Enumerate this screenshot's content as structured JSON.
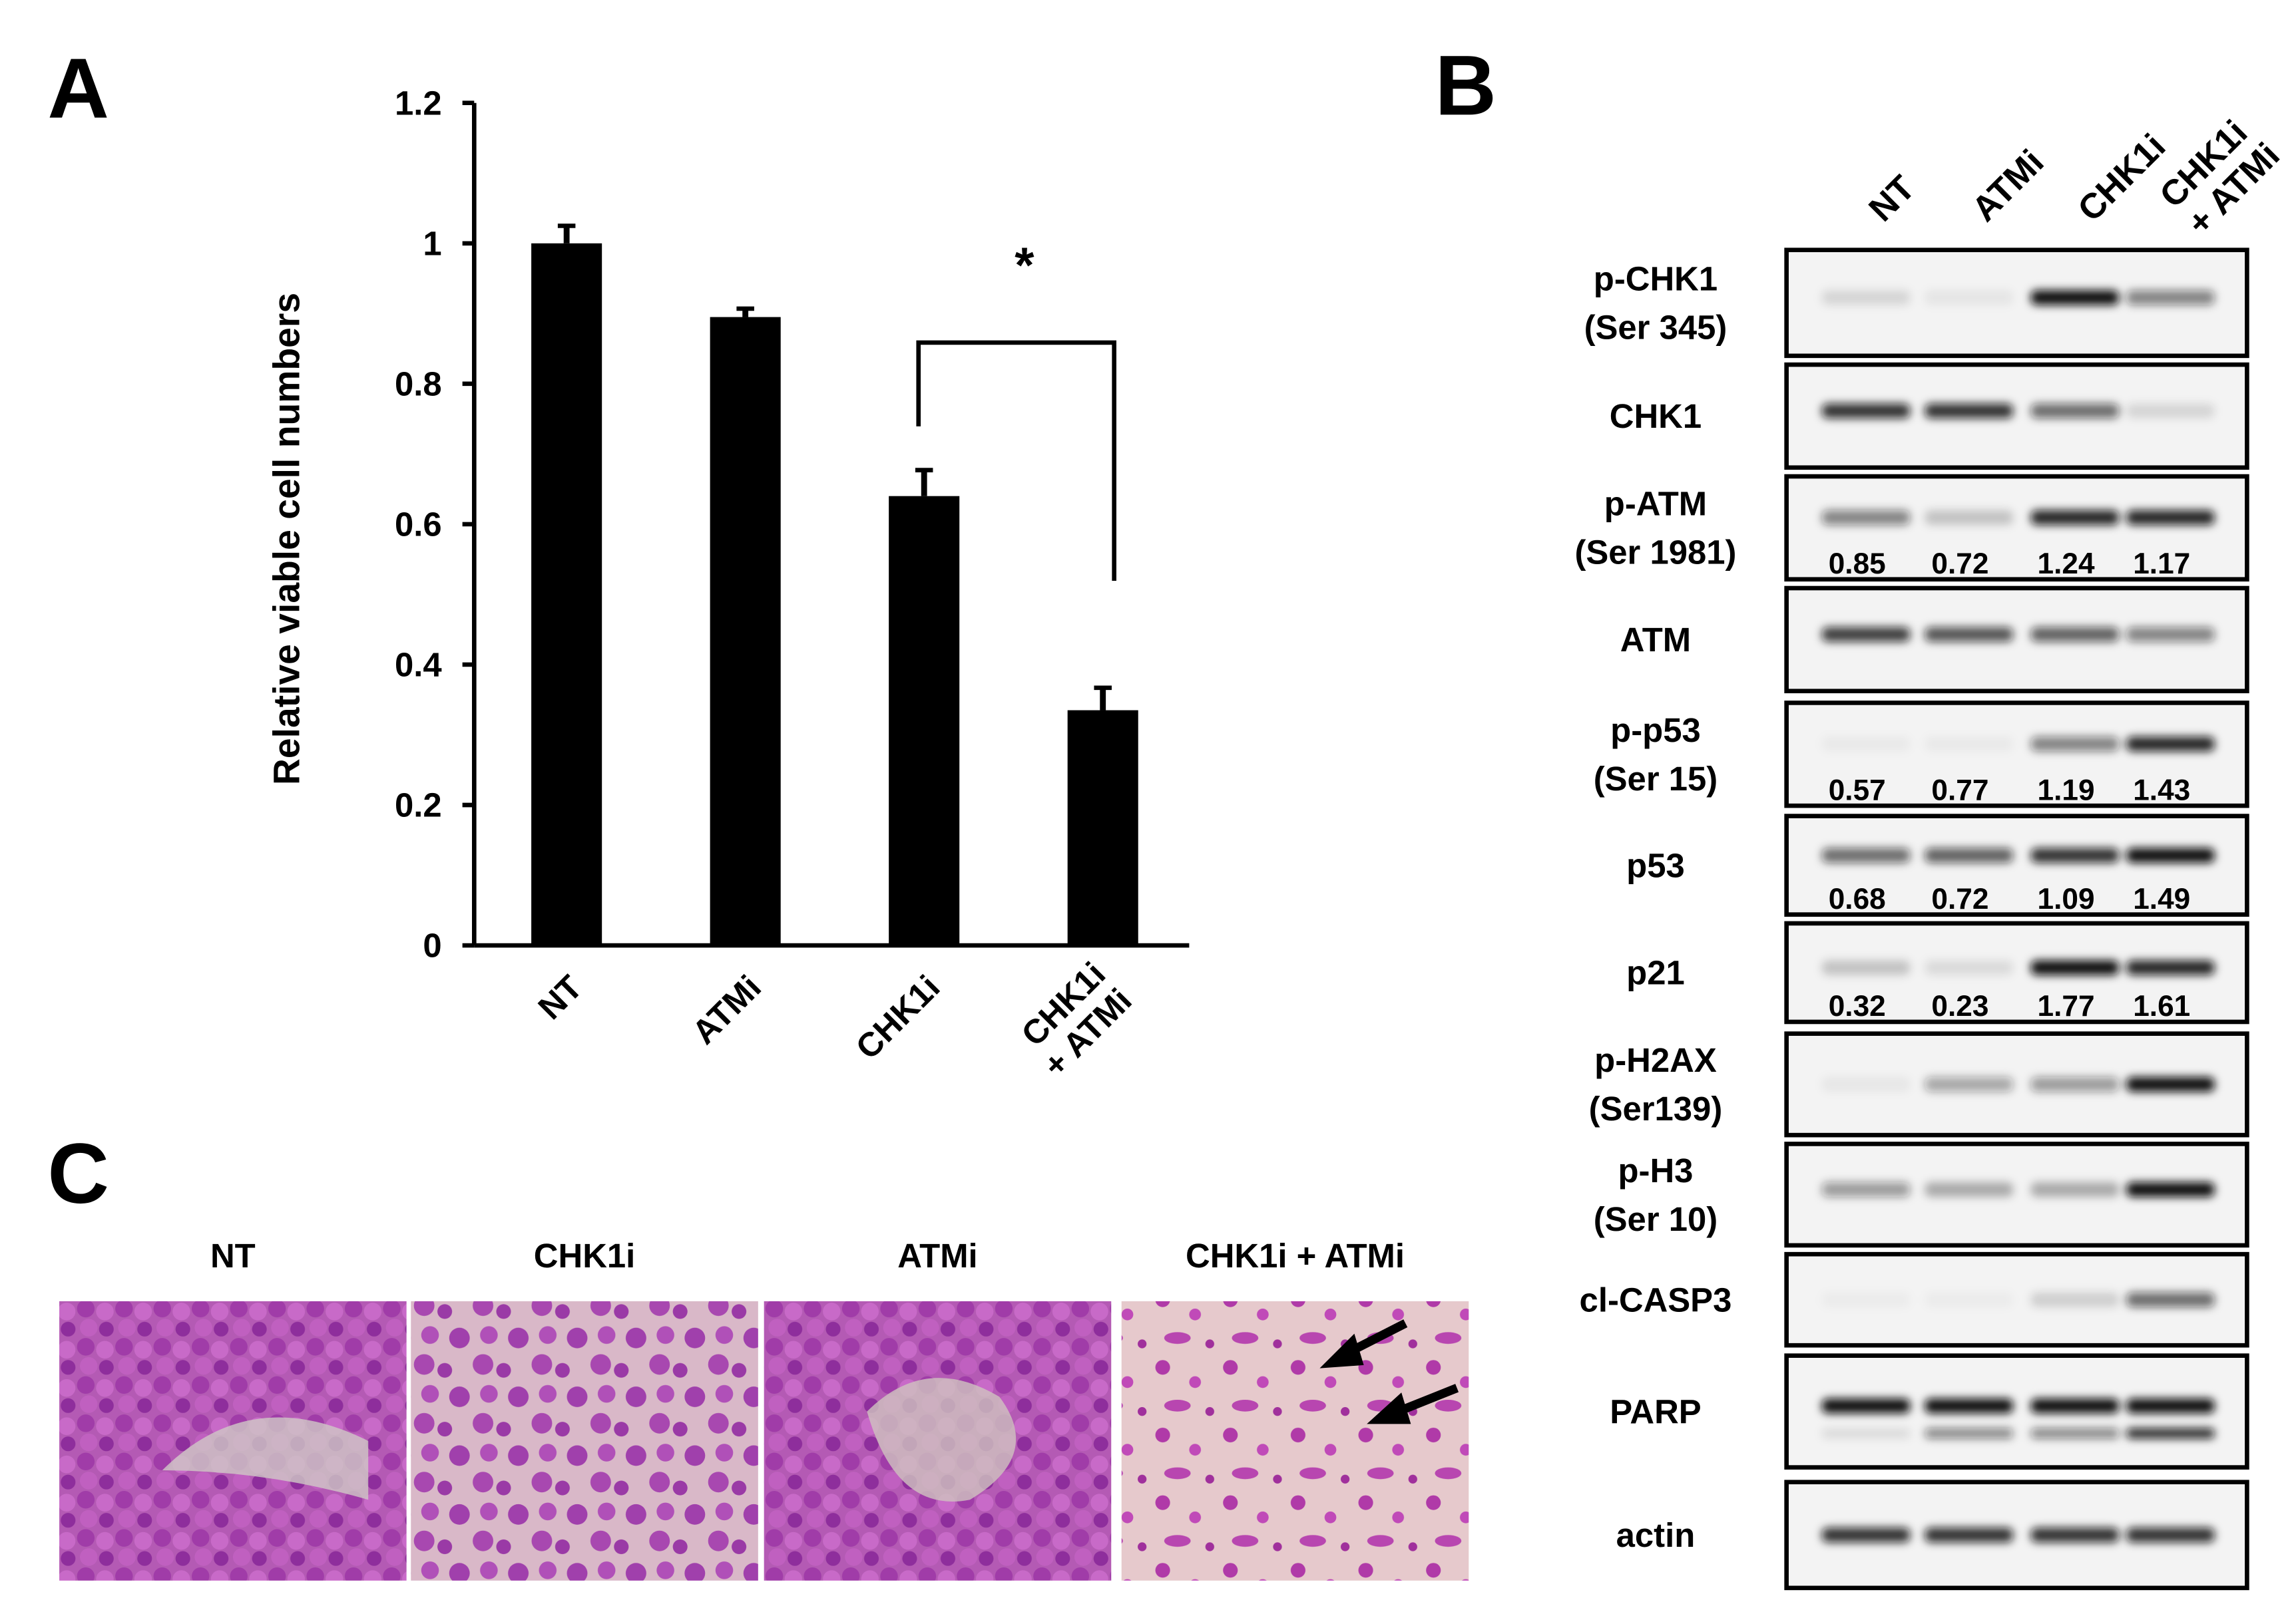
{
  "panels": [
    "A",
    "B",
    "C"
  ],
  "chart_data": {
    "type": "bar",
    "categories": [
      "NT",
      "ATMi",
      "CHK1i",
      "CHK1i\n+ ATMi"
    ],
    "values": [
      1.0,
      0.895,
      0.64,
      0.335
    ],
    "errors": [
      0.025,
      0.012,
      0.037,
      0.032
    ],
    "color": "#000000",
    "ylabel": "Relative viable cell numbers",
    "ylim": [
      0,
      1.2
    ],
    "yticks": [
      0,
      0.2,
      0.4,
      0.6,
      0.8,
      1,
      1.2
    ],
    "annotation": "*"
  },
  "blot": {
    "lanes": [
      "NT",
      "ATMi",
      "CHK1i",
      "CHK1i\n+ ATMi"
    ],
    "rows": [
      {
        "label": [
          "p-CHK1",
          "(Ser 345)"
        ]
      },
      {
        "label": [
          "CHK1"
        ]
      },
      {
        "label": [
          "p-ATM",
          "(Ser 1981)"
        ],
        "quant": [
          0.85,
          0.72,
          1.24,
          1.17
        ]
      },
      {
        "label": [
          "ATM"
        ]
      },
      {
        "label": [
          "p-p53",
          "(Ser 15)"
        ],
        "quant": [
          0.57,
          0.77,
          1.19,
          1.43
        ]
      },
      {
        "label": [
          "p53"
        ],
        "quant": [
          0.68,
          0.72,
          1.09,
          1.49
        ]
      },
      {
        "label": [
          "p21"
        ],
        "quant": [
          0.32,
          0.23,
          1.77,
          1.61
        ]
      },
      {
        "label": [
          "p-H2AX",
          "(Ser139)"
        ]
      },
      {
        "label": [
          "p-H3",
          "(Ser 10)"
        ]
      },
      {
        "label": [
          "cl-CASP3"
        ]
      },
      {
        "label": [
          "PARP"
        ]
      },
      {
        "label": [
          "actin"
        ]
      }
    ]
  },
  "micrographs": [
    "NT",
    "CHK1i",
    "ATMi",
    "CHK1i + ATMi"
  ]
}
